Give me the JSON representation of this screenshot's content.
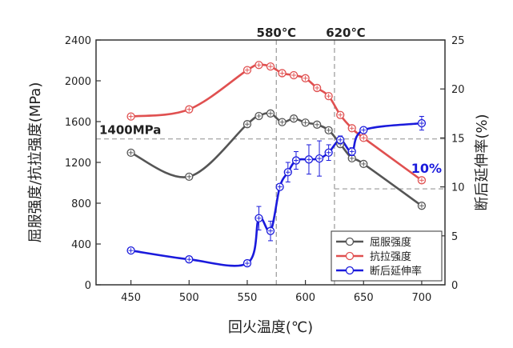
{
  "chart_data": {
    "type": "line",
    "xlabel": "回火温度(℃)",
    "ylabel_left": "屈服强度/抗拉强度(MPa)",
    "ylabel_right": "断后延伸率(%)",
    "xlim": [
      420,
      720
    ],
    "xticks": [
      450,
      500,
      550,
      600,
      650,
      700
    ],
    "ylim_left": [
      0,
      2400
    ],
    "yticks_left": [
      0,
      400,
      800,
      1200,
      1600,
      2000,
      2400
    ],
    "ylim_right": [
      0,
      25
    ],
    "yticks_right": [
      0,
      5,
      10,
      15,
      20,
      25
    ],
    "grid": false,
    "legend_position": "bottom-right",
    "series": [
      {
        "name": "屈服强度",
        "axis": "left",
        "color": "#555555",
        "x": [
          450,
          500,
          550,
          560,
          570,
          580,
          590,
          600,
          610,
          620,
          630,
          640,
          650,
          700
        ],
        "y": [
          1295,
          1060,
          1575,
          1655,
          1680,
          1595,
          1630,
          1590,
          1570,
          1515,
          1380,
          1240,
          1185,
          775
        ]
      },
      {
        "name": "抗拉强度",
        "axis": "left",
        "color": "#e05050",
        "x": [
          450,
          500,
          550,
          560,
          570,
          580,
          590,
          600,
          610,
          620,
          630,
          640,
          650,
          700
        ],
        "y": [
          1650,
          1720,
          2105,
          2155,
          2140,
          2075,
          2055,
          2025,
          1930,
          1850,
          1665,
          1535,
          1440,
          1025
        ]
      },
      {
        "name": "断后延伸率",
        "axis": "right",
        "color": "#1a1adc",
        "x": [
          450,
          500,
          550,
          560,
          570,
          578,
          585,
          592,
          603,
          612,
          620,
          630,
          640,
          650,
          700
        ],
        "y": [
          3.5,
          2.6,
          2.2,
          6.8,
          5.5,
          10.0,
          11.5,
          12.7,
          12.8,
          12.9,
          13.5,
          14.8,
          13.6,
          15.8,
          16.5
        ],
        "err": [
          0.2,
          0.2,
          0.2,
          1.2,
          1.0,
          0.3,
          1.0,
          0.9,
          1.5,
          1.8,
          0.8,
          0.4,
          0.4,
          0.3,
          0.7
        ]
      }
    ],
    "annotations": {
      "v580": {
        "x": 575,
        "label": "580℃"
      },
      "v620": {
        "x": 625,
        "label": "620℃"
      },
      "h1400": {
        "y": 1430,
        "axis": "left",
        "label": "1400MPa"
      },
      "h10": {
        "y": 9.8,
        "axis": "right",
        "label": "10%"
      }
    }
  }
}
